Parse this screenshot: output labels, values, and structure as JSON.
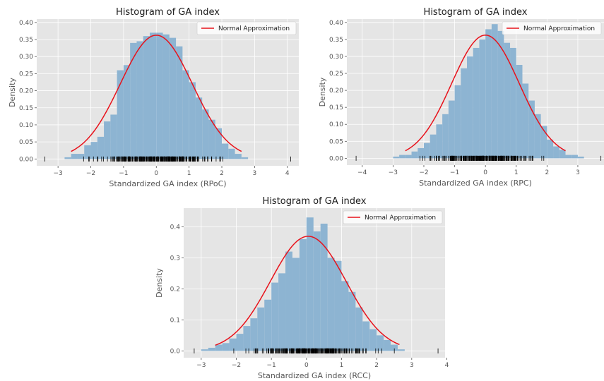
{
  "chart_data": [
    {
      "type": "bar",
      "title": "Histogram of GA index",
      "xlabel": "Standardized GA index (RPoC)",
      "ylabel": "Density",
      "xlim": [
        -3.65,
        4.35
      ],
      "ylim": [
        -0.02,
        0.41
      ],
      "xticks": [
        -3,
        -2,
        -1,
        0,
        1,
        2,
        3,
        4
      ],
      "yticks": [
        0.0,
        0.05,
        0.1,
        0.15,
        0.2,
        0.25,
        0.3,
        0.35,
        0.4
      ],
      "ytick_labels": [
        "0.00",
        "0.05",
        "0.10",
        "0.15",
        "0.20",
        "0.25",
        "0.30",
        "0.35",
        "0.40"
      ],
      "legend": {
        "label": "Normal Approximation",
        "position": "top-right"
      },
      "grid": true,
      "bins": {
        "edges": [
          -2.8,
          -2.6,
          -2.4,
          -2.2,
          -2.0,
          -1.8,
          -1.6,
          -1.4,
          -1.2,
          -1.0,
          -0.8,
          -0.6,
          -0.4,
          -0.2,
          0.0,
          0.2,
          0.4,
          0.6,
          0.8,
          1.0,
          1.2,
          1.4,
          1.6,
          1.8,
          2.0,
          2.2,
          2.4,
          2.6,
          2.8
        ],
        "density": [
          0.005,
          0.015,
          0.015,
          0.04,
          0.05,
          0.065,
          0.11,
          0.13,
          0.26,
          0.275,
          0.34,
          0.345,
          0.36,
          0.37,
          0.37,
          0.365,
          0.355,
          0.33,
          0.26,
          0.225,
          0.18,
          0.145,
          0.115,
          0.09,
          0.045,
          0.03,
          0.015,
          0.005
        ]
      },
      "normal_curve": {
        "mean": 0.0,
        "std": 1.1,
        "x_range": [
          -2.6,
          2.6
        ]
      },
      "rug_range": [
        -3.4,
        4.1
      ]
    },
    {
      "type": "bar",
      "title": "Histogram of GA index",
      "xlabel": "Standardized GA index (RPC)",
      "ylabel": "Density",
      "xlim": [
        -4.5,
        3.85
      ],
      "ylim": [
        -0.02,
        0.41
      ],
      "xticks": [
        -4,
        -3,
        -2,
        -1,
        0,
        1,
        2,
        3
      ],
      "yticks": [
        0.0,
        0.05,
        0.1,
        0.15,
        0.2,
        0.25,
        0.3,
        0.35,
        0.4
      ],
      "ytick_labels": [
        "0.00",
        "0.05",
        "0.10",
        "0.15",
        "0.20",
        "0.25",
        "0.30",
        "0.35",
        "0.40"
      ],
      "legend": {
        "label": "Normal Approximation",
        "position": "top-right"
      },
      "grid": true,
      "bins": {
        "edges": [
          -3.0,
          -2.8,
          -2.6,
          -2.4,
          -2.2,
          -2.0,
          -1.8,
          -1.6,
          -1.4,
          -1.2,
          -1.0,
          -0.8,
          -0.6,
          -0.4,
          -0.2,
          0.0,
          0.2,
          0.4,
          0.6,
          0.8,
          1.0,
          1.2,
          1.4,
          1.6,
          1.8,
          2.0,
          2.2,
          2.4,
          2.6,
          2.8,
          3.0,
          3.2
        ],
        "density": [
          0.005,
          0.01,
          0.01,
          0.02,
          0.03,
          0.045,
          0.07,
          0.1,
          0.13,
          0.17,
          0.215,
          0.265,
          0.3,
          0.325,
          0.35,
          0.38,
          0.395,
          0.375,
          0.34,
          0.325,
          0.275,
          0.22,
          0.17,
          0.13,
          0.095,
          0.055,
          0.035,
          0.025,
          0.01,
          0.01,
          0.005
        ]
      },
      "normal_curve": {
        "mean": 0.0,
        "std": 1.1,
        "x_range": [
          -2.6,
          2.6
        ]
      },
      "rug_range": [
        -4.2,
        3.75
      ]
    },
    {
      "type": "bar",
      "title": "Histogram of GA index",
      "xlabel": "Standardized GA index (RCC)",
      "ylabel": "Density",
      "xlim": [
        -3.5,
        3.95
      ],
      "ylim": [
        -0.022,
        0.46
      ],
      "xticks": [
        -3,
        -2,
        -1,
        0,
        1,
        2,
        3,
        4
      ],
      "yticks": [
        0.0,
        0.1,
        0.2,
        0.3,
        0.4
      ],
      "ytick_labels": [
        "0.0",
        "0.1",
        "0.2",
        "0.3",
        "0.4"
      ],
      "legend": {
        "label": "Normal Approximation",
        "position": "top-right"
      },
      "grid": true,
      "bins": {
        "edges": [
          -3.0,
          -2.8,
          -2.6,
          -2.4,
          -2.2,
          -2.0,
          -1.8,
          -1.6,
          -1.4,
          -1.2,
          -1.0,
          -0.8,
          -0.6,
          -0.4,
          -0.2,
          0.0,
          0.2,
          0.4,
          0.6,
          0.8,
          1.0,
          1.2,
          1.4,
          1.6,
          1.8,
          2.0,
          2.2,
          2.4,
          2.6,
          2.8
        ],
        "density": [
          0.005,
          0.01,
          0.02,
          0.025,
          0.04,
          0.055,
          0.08,
          0.105,
          0.14,
          0.165,
          0.22,
          0.25,
          0.32,
          0.3,
          0.36,
          0.43,
          0.385,
          0.41,
          0.3,
          0.29,
          0.225,
          0.19,
          0.14,
          0.095,
          0.07,
          0.05,
          0.035,
          0.02,
          0.005
        ]
      },
      "normal_curve": {
        "mean": 0.05,
        "std": 1.08,
        "x_range": [
          -2.6,
          2.65
        ]
      },
      "rug_range": [
        -3.2,
        3.75
      ]
    }
  ],
  "colors": {
    "axes_bg": "#e5e5e5",
    "grid": "#ffffff",
    "bar": "#8db4d2",
    "curve": "#e8121b",
    "text": "#555555"
  }
}
